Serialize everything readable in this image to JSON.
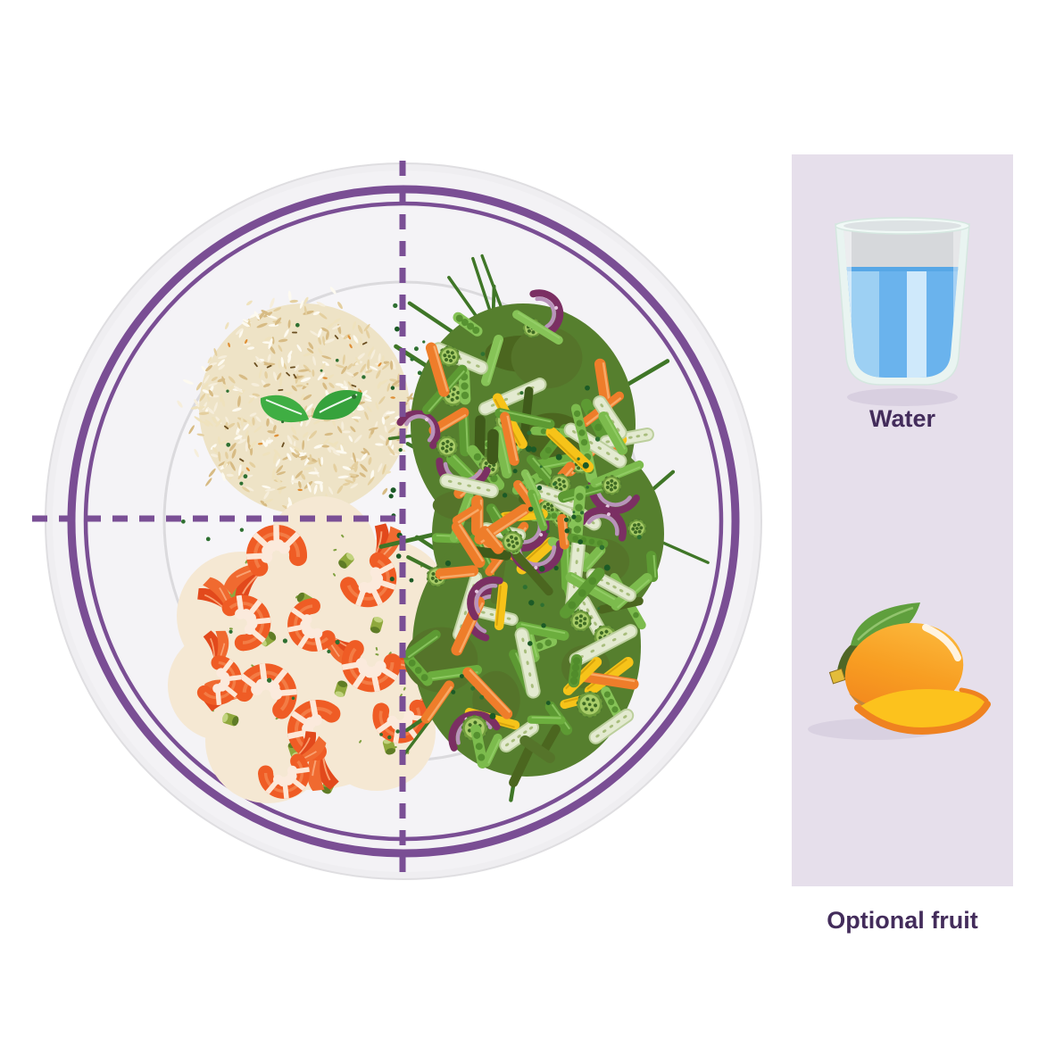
{
  "scene": {
    "title": "Healthy portion plate infographic"
  },
  "panel": {
    "background": "#e6dfeb",
    "label_color": "#432c5b",
    "items": [
      {
        "icon": "water-glass-icon",
        "label": "Water"
      },
      {
        "icon": "mango-icon",
        "label": "Optional fruit"
      }
    ]
  },
  "plate": {
    "divider_color": "#7a4f95",
    "ring_color": "#7a4e94",
    "plate_color": "#efeef1",
    "plate_inner_color": "#f3f2f5",
    "well_color": "#f6f5f8",
    "well_edge_color": "#dbdadd",
    "sections": [
      {
        "name": "grains",
        "food": "brown rice with mint garnish",
        "position": "top-left-quarter"
      },
      {
        "name": "protein",
        "food": "shrimp with green onion",
        "position": "bottom-left-quarter"
      },
      {
        "name": "vegetables",
        "food": "mixed stir-fry vegetables",
        "position": "right-half"
      }
    ]
  },
  "palettes": {
    "rice_base": "#eee3c6",
    "rice_grains": [
      "#f6eedb",
      "#efe2bd",
      "#e4cf9f",
      "#d7bb84",
      "#fdfaf0"
    ],
    "rice_speck_dark": "#6b4f21",
    "rice_speck_orange": "#df8f35",
    "leaf_green": "#3fae43",
    "leaf_green_dark": "#36a23c",
    "leaf_vein": "#edf7ec",
    "shrimp_body": "#ef5c25",
    "shrimp_sheen": "#f58a52",
    "shrimp_stripe": "#fde7d6",
    "shrimp_tail": "#e2491c",
    "shrimp_tail2": "#f06a30",
    "shrimp_belly": "#fbeadc",
    "shrimp_plate": "#f5e8d3",
    "onion_chunk": "#8fa83d",
    "onion_chunk_dark": "#5f7c26",
    "onion_chunk_light": "#c2d37e",
    "veg_base": "#567f2e",
    "veg_greens": [
      "#6cae3e",
      "#7cbb4d",
      "#5d9a33",
      "#86c357"
    ],
    "veg_dark": [
      "#4b661f",
      "#55742a",
      "#3f5a1a"
    ],
    "veg_strand": "#3f7627",
    "carrot": "#ee7d2a",
    "carrot_hi": "#f8a966",
    "pepper_yellow": "#f6c319",
    "pepper_edge": "#d9a50d",
    "onion_outer": "#7b2f63",
    "onion_inner": "#b993bb",
    "onion_dot": "#e4c6df",
    "okra_outer": "#6f9c3c",
    "okra_inner": "#a9cd69",
    "okra_seed": "#3f6b24",
    "zucchini": "#e3ead0",
    "zucchini_edge": "#bccf9d",
    "zucchini_seed": "#a8bd7c",
    "speck_green": "#2e7031",
    "pea_dark": "#1c5a26"
  },
  "water": {
    "main": "#6ab3ed",
    "light": "#9dd0f3",
    "band": "#cfe9fb",
    "surface": "#57a7e6",
    "glass": "#e9f4f1",
    "glass_edge": "#d5e7e0",
    "inner_top": "#d6d8db",
    "shadow": "#d8cfe0"
  },
  "mango": {
    "body_light": "#fbb93c",
    "body_mid": "#f89e22",
    "body_deep": "#f07e1b",
    "shade": "#c4853c",
    "slice_flesh": "#fcc21d",
    "slice_rind": "#ef8220",
    "leaf": "#5f9f3d",
    "leaf_vein": "#92c46e",
    "stem": "#4f6626",
    "stem_tip": "#e3bc3a",
    "shadow": "#d9d1e1"
  }
}
